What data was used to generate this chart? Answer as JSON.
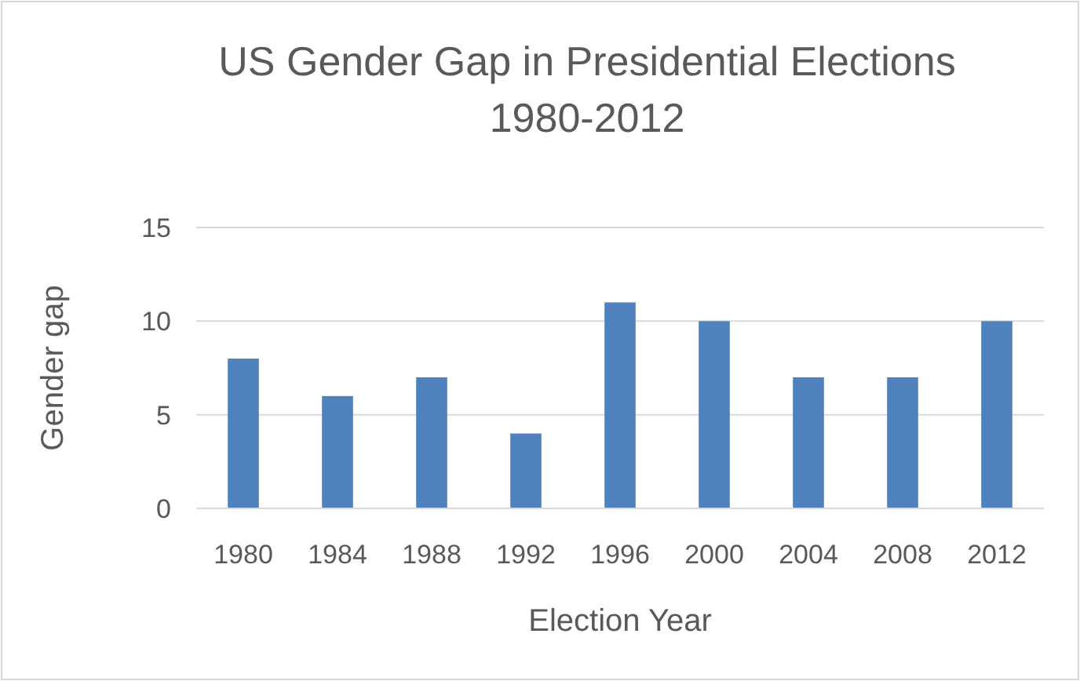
{
  "chart_data": {
    "type": "bar",
    "title": "US Gender Gap in Presidential Elections 1980-2012",
    "xlabel": "Election Year",
    "ylabel": "Gender gap",
    "categories": [
      "1980",
      "1984",
      "1988",
      "1992",
      "1996",
      "2000",
      "2004",
      "2008",
      "2012"
    ],
    "values": [
      8,
      6,
      7,
      4,
      11,
      10,
      7,
      7,
      10
    ],
    "color": "#4f81bd",
    "ylim": [
      0,
      15
    ],
    "yticks": [
      0,
      5,
      10,
      15
    ],
    "grid": "y"
  }
}
